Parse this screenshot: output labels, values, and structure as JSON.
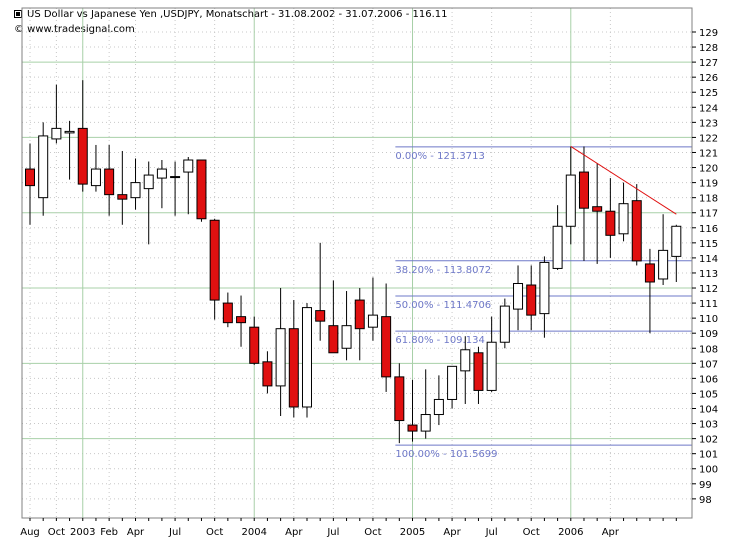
{
  "header": {
    "title": "US Dollar vs Japanese Yen ,USDJPY, Monatschart - 31.08.2002 - 31.07.2006 - 116.11",
    "source": "© www.tradesignal.com"
  },
  "colors": {
    "up_fill": "#ffffff",
    "down_fill": "#e01010",
    "wick": "#000000",
    "grid_major": "#a8d0a8",
    "grid_minor": "#c8c8c8",
    "fib_line": "#6e78c8",
    "fib_label": "#6e78c8",
    "trend_line": "#e01010"
  },
  "chart_data": {
    "type": "candlestick",
    "title": "US Dollar vs Japanese Yen ,USDJPY, Monatschart - 31.08.2002 - 31.07.2006 - 116.11",
    "xlabel": "",
    "ylabel": "",
    "ylim": [
      97,
      130
    ],
    "y_ticks": [
      98,
      99,
      100,
      101,
      102,
      103,
      104,
      105,
      106,
      107,
      108,
      109,
      110,
      111,
      112,
      113,
      114,
      115,
      116,
      117,
      118,
      119,
      120,
      121,
      122,
      123,
      124,
      125,
      126,
      127,
      128,
      129
    ],
    "x_ticks": [
      "Aug",
      "Oct",
      "2003",
      "Feb",
      "Apr",
      "Jul",
      "Oct",
      "2004",
      "Apr",
      "Jul",
      "Oct",
      "2005",
      "Apr",
      "Jul",
      "Oct",
      "2006",
      "Apr"
    ],
    "x_tick_index": [
      0,
      2,
      4,
      6,
      8,
      11,
      14,
      17,
      20,
      23,
      26,
      29,
      32,
      35,
      38,
      41,
      44
    ],
    "candles": [
      {
        "o": 119.9,
        "h": 121.6,
        "l": 116.2,
        "c": 118.8
      },
      {
        "o": 118.0,
        "h": 123.0,
        "l": 116.8,
        "c": 122.1
      },
      {
        "o": 121.9,
        "h": 125.5,
        "l": 121.6,
        "c": 122.6
      },
      {
        "o": 122.3,
        "h": 123.1,
        "l": 119.2,
        "c": 122.4
      },
      {
        "o": 122.6,
        "h": 125.8,
        "l": 118.4,
        "c": 118.9
      },
      {
        "o": 118.8,
        "h": 121.5,
        "l": 118.4,
        "c": 119.9
      },
      {
        "o": 119.9,
        "h": 121.5,
        "l": 116.8,
        "c": 118.2
      },
      {
        "o": 118.2,
        "h": 121.1,
        "l": 116.2,
        "c": 117.9
      },
      {
        "o": 118.0,
        "h": 120.6,
        "l": 117.2,
        "c": 119.0
      },
      {
        "o": 118.6,
        "h": 120.4,
        "l": 114.9,
        "c": 119.5
      },
      {
        "o": 119.3,
        "h": 120.5,
        "l": 117.3,
        "c": 119.9
      },
      {
        "o": 119.4,
        "h": 120.4,
        "l": 116.8,
        "c": 119.4
      },
      {
        "o": 119.7,
        "h": 120.7,
        "l": 116.9,
        "c": 120.5
      },
      {
        "o": 120.5,
        "h": 120.5,
        "l": 116.4,
        "c": 116.6
      },
      {
        "o": 116.5,
        "h": 116.6,
        "l": 109.9,
        "c": 111.2
      },
      {
        "o": 111.0,
        "h": 111.7,
        "l": 109.4,
        "c": 109.7
      },
      {
        "o": 110.1,
        "h": 111.5,
        "l": 108.1,
        "c": 109.7
      },
      {
        "o": 109.4,
        "h": 110.1,
        "l": 106.9,
        "c": 107.0
      },
      {
        "o": 107.1,
        "h": 107.8,
        "l": 105.0,
        "c": 105.5
      },
      {
        "o": 105.5,
        "h": 112.0,
        "l": 103.5,
        "c": 109.3
      },
      {
        "o": 109.3,
        "h": 111.2,
        "l": 103.4,
        "c": 104.1
      },
      {
        "o": 104.1,
        "h": 111.0,
        "l": 103.4,
        "c": 110.7
      },
      {
        "o": 110.5,
        "h": 115.0,
        "l": 108.5,
        "c": 109.8
      },
      {
        "o": 109.5,
        "h": 112.5,
        "l": 107.8,
        "c": 107.7
      },
      {
        "o": 108.0,
        "h": 111.8,
        "l": 107.2,
        "c": 109.5
      },
      {
        "o": 111.2,
        "h": 112.0,
        "l": 107.2,
        "c": 109.3
      },
      {
        "o": 109.4,
        "h": 112.7,
        "l": 108.5,
        "c": 110.2
      },
      {
        "o": 110.1,
        "h": 112.3,
        "l": 105.1,
        "c": 106.1
      },
      {
        "o": 106.1,
        "h": 107.0,
        "l": 101.7,
        "c": 103.2
      },
      {
        "o": 102.9,
        "h": 105.9,
        "l": 101.8,
        "c": 102.5
      },
      {
        "o": 102.5,
        "h": 106.6,
        "l": 102.0,
        "c": 103.6
      },
      {
        "o": 103.6,
        "h": 106.2,
        "l": 102.9,
        "c": 104.6
      },
      {
        "o": 104.6,
        "h": 106.7,
        "l": 104.0,
        "c": 106.8
      },
      {
        "o": 106.5,
        "h": 108.8,
        "l": 104.3,
        "c": 107.9
      },
      {
        "o": 107.7,
        "h": 108.1,
        "l": 104.3,
        "c": 105.2
      },
      {
        "o": 105.2,
        "h": 110.1,
        "l": 105.1,
        "c": 108.4
      },
      {
        "o": 108.4,
        "h": 111.3,
        "l": 108.0,
        "c": 110.8
      },
      {
        "o": 110.6,
        "h": 113.5,
        "l": 109.2,
        "c": 112.3
      },
      {
        "o": 112.2,
        "h": 113.5,
        "l": 109.2,
        "c": 110.2
      },
      {
        "o": 110.3,
        "h": 114.1,
        "l": 108.7,
        "c": 113.7
      },
      {
        "o": 113.3,
        "h": 117.5,
        "l": 113.2,
        "c": 116.1
      },
      {
        "o": 116.1,
        "h": 121.4,
        "l": 114.9,
        "c": 119.5
      },
      {
        "o": 119.7,
        "h": 121.4,
        "l": 113.8,
        "c": 117.3
      },
      {
        "o": 117.4,
        "h": 120.3,
        "l": 113.6,
        "c": 117.1
      },
      {
        "o": 117.1,
        "h": 119.3,
        "l": 114.0,
        "c": 115.5
      },
      {
        "o": 115.6,
        "h": 119.0,
        "l": 115.1,
        "c": 117.6
      },
      {
        "o": 117.8,
        "h": 118.9,
        "l": 113.5,
        "c": 113.8
      },
      {
        "o": 113.6,
        "h": 114.6,
        "l": 109.0,
        "c": 112.4
      },
      {
        "o": 112.6,
        "h": 116.9,
        "l": 112.2,
        "c": 114.5
      },
      {
        "o": 114.1,
        "h": 116.2,
        "l": 112.4,
        "c": 116.1
      }
    ],
    "fibonacci": [
      {
        "label": "0.00% - 121.3713",
        "value": 121.3713
      },
      {
        "label": "38.20% - 113.8072",
        "value": 113.8072
      },
      {
        "label": "50.00% - 111.4706",
        "value": 111.4706
      },
      {
        "label": "61.80% - 109.134",
        "value": 109.134
      },
      {
        "label": "100.00% - 101.5699",
        "value": 101.5699
      }
    ],
    "trend_line": [
      {
        "x": 41,
        "y": 121.4
      },
      {
        "x": 49,
        "y": 116.9
      }
    ],
    "grid": true,
    "legend": "none"
  }
}
